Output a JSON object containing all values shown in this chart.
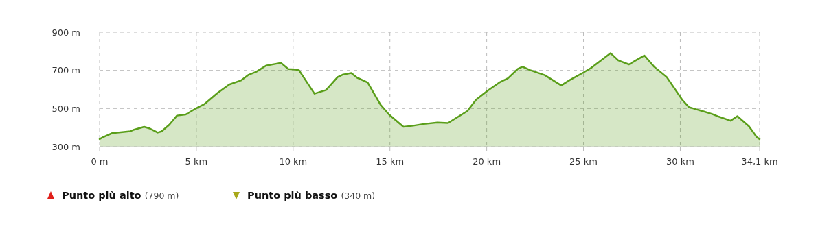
{
  "chart_data": {
    "type": "area",
    "x": [
      0,
      0.18,
      0.65,
      1.6,
      1.78,
      2.3,
      2.6,
      3.0,
      3.2,
      3.6,
      4.0,
      4.45,
      5.0,
      5.4,
      6.1,
      6.7,
      7.3,
      7.7,
      8.1,
      8.6,
      9.25,
      9.4,
      9.75,
      10.05,
      10.3,
      11.1,
      11.7,
      12.3,
      12.55,
      13.0,
      13.3,
      13.85,
      14.5,
      14.95,
      15.7,
      16.2,
      16.75,
      17.45,
      18.0,
      19.0,
      19.45,
      20.05,
      20.65,
      21.1,
      21.6,
      21.85,
      22.25,
      23.0,
      23.85,
      24.3,
      25.0,
      25.4,
      26.4,
      26.8,
      27.35,
      27.7,
      28.15,
      28.65,
      29.3,
      30.1,
      30.45,
      31.2,
      31.65,
      32.0,
      32.6,
      32.95,
      33.55,
      33.95,
      34.1
    ],
    "series": [
      {
        "color": "#5a9e1a",
        "values": [
          340,
          350,
          371,
          381,
          389,
          404,
          395,
          374,
          380,
          415,
          463,
          469,
          502,
          522,
          582,
          626,
          647,
          677,
          693,
          725,
          737,
          737,
          707,
          705,
          701,
          578,
          597,
          665,
          677,
          686,
          662,
          636,
          522,
          469,
          404,
          410,
          419,
          427,
          424,
          487,
          546,
          594,
          636,
          659,
          707,
          719,
          701,
          675,
          621,
          650,
          689,
          713,
          790,
          752,
          731,
          752,
          778,
          719,
          665,
          546,
          507,
          485,
          471,
          457,
          436,
          460,
          407,
          350,
          340
        ]
      }
    ],
    "xlim": [
      0,
      34.1
    ],
    "xticks": [
      {
        "value": 0,
        "label": "0 m"
      },
      {
        "value": 5,
        "label": "5 km"
      },
      {
        "value": 10,
        "label": "10 km"
      },
      {
        "value": 15,
        "label": "15 km"
      },
      {
        "value": 20,
        "label": "20 km"
      },
      {
        "value": 25,
        "label": "25 km"
      },
      {
        "value": 30,
        "label": "30 km"
      },
      {
        "value": 34.1,
        "label": "34,1 km"
      }
    ],
    "ylim": [
      300,
      900
    ],
    "yticks": [
      {
        "value": 300,
        "label": "300 m"
      },
      {
        "value": 500,
        "label": "500 m"
      },
      {
        "value": 700,
        "label": "700 m"
      },
      {
        "value": 900,
        "label": "900 m"
      }
    ],
    "grid": true,
    "line_style": "solid",
    "annotations": [
      "Punto più alto (790 m)",
      "Punto più basso (340 m)"
    ]
  }
}
